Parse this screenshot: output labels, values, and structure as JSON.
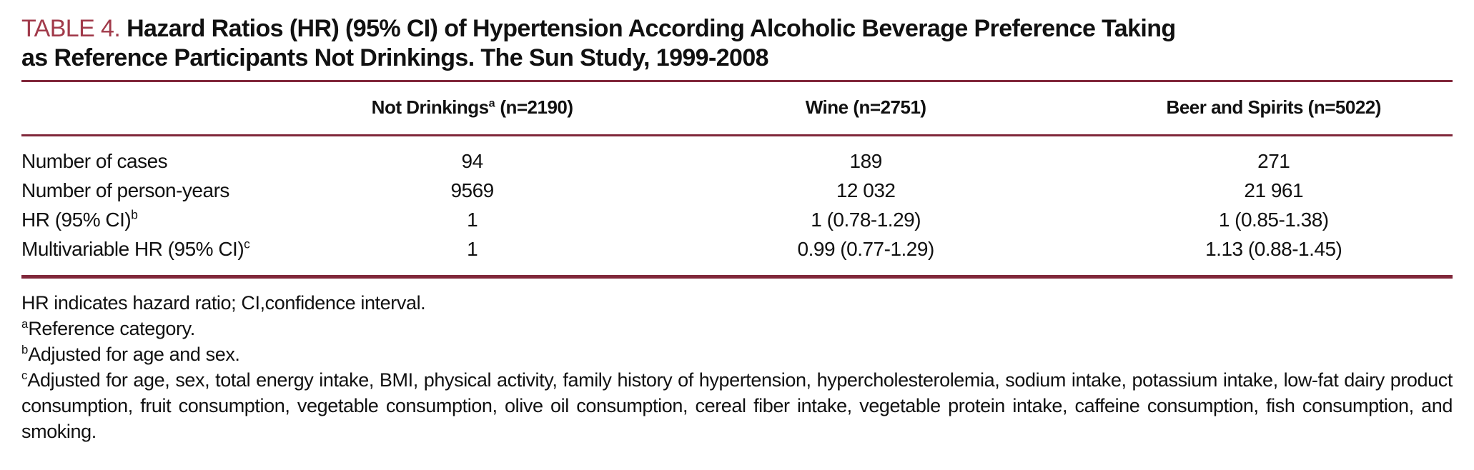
{
  "colors": {
    "rule": "#80273a",
    "title_accent": "#a13a4a",
    "text": "#111111",
    "background": "#ffffff"
  },
  "title": {
    "label": "TABLE 4.",
    "line1": "Hazard Ratios (HR) (95% CI) of Hypertension According Alcoholic Beverage Preference Taking",
    "line2": "as Reference Participants Not Drinkings. The Sun Study, 1999-2008"
  },
  "table": {
    "columns": [
      {
        "name": "Not Drinkings",
        "sup": "a",
        "n": " (n=2190)"
      },
      {
        "name": "Wine",
        "sup": "",
        "n": " (n=2751)"
      },
      {
        "name": "Beer and Spirits",
        "sup": "",
        "n": " (n=5022)"
      }
    ],
    "rows": [
      {
        "label": "Number of cases",
        "sup": "",
        "values": [
          "94",
          "189",
          "271"
        ]
      },
      {
        "label": "Number of person-years",
        "sup": "",
        "values": [
          "9569",
          "12 032",
          "21 961"
        ]
      },
      {
        "label": "HR (95% CI)",
        "sup": "b",
        "values": [
          "1",
          "1 (0.78-1.29)",
          "1 (0.85-1.38)"
        ]
      },
      {
        "label": "Multivariable HR (95% CI)",
        "sup": "c",
        "values": [
          "1",
          "0.99 (0.77-1.29)",
          "1.13 (0.88-1.45)"
        ]
      }
    ]
  },
  "footnotes": [
    {
      "sup": "",
      "text": "HR indicates hazard ratio; CI,confidence interval."
    },
    {
      "sup": "a",
      "text": "Reference category."
    },
    {
      "sup": "b",
      "text": "Adjusted for age and sex."
    },
    {
      "sup": "c",
      "text": "Adjusted for age, sex, total energy intake, BMI, physical activity, family history of hypertension, hypercholesterolemia, sodium intake, potassium intake, low-fat dairy product consumption, fruit consumption, vegetable consumption, olive oil consumption, cereal fiber intake, vegetable protein intake, caffeine consumption, fish consumption, and smoking."
    }
  ]
}
